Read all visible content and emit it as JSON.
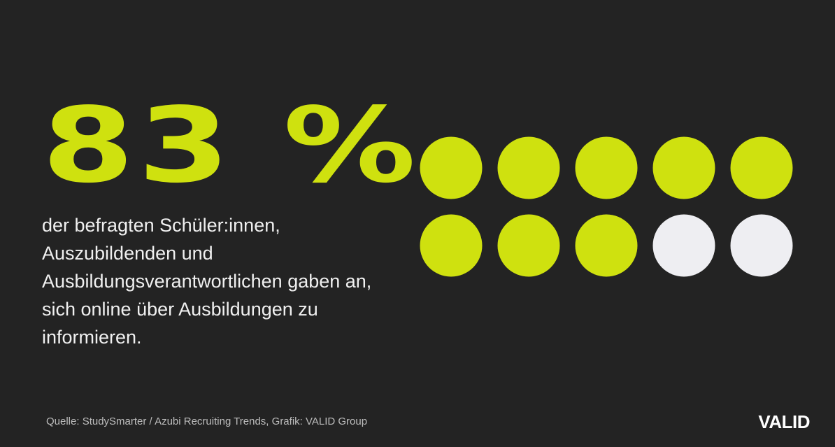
{
  "headline": "83 %",
  "description": "der befragten Schüler:innen, Auszubildenden und Ausbildungsverantwortlichen gaben an, sich online über Ausbildungen zu informieren.",
  "source": "Quelle: StudySmarter / Azubi Recruiting Trends,  Grafik: VALID Group",
  "brand": "VALID",
  "colors": {
    "background": "#232323",
    "accent": "#cfe10f",
    "inactive": "#eeeef2",
    "text": "#f0f0f0",
    "muted": "#bdbdbd"
  },
  "chart_data": {
    "type": "dot-matrix",
    "total_dots": 10,
    "filled_dots": 8,
    "percent": 83,
    "rows": 2,
    "columns": 5
  }
}
